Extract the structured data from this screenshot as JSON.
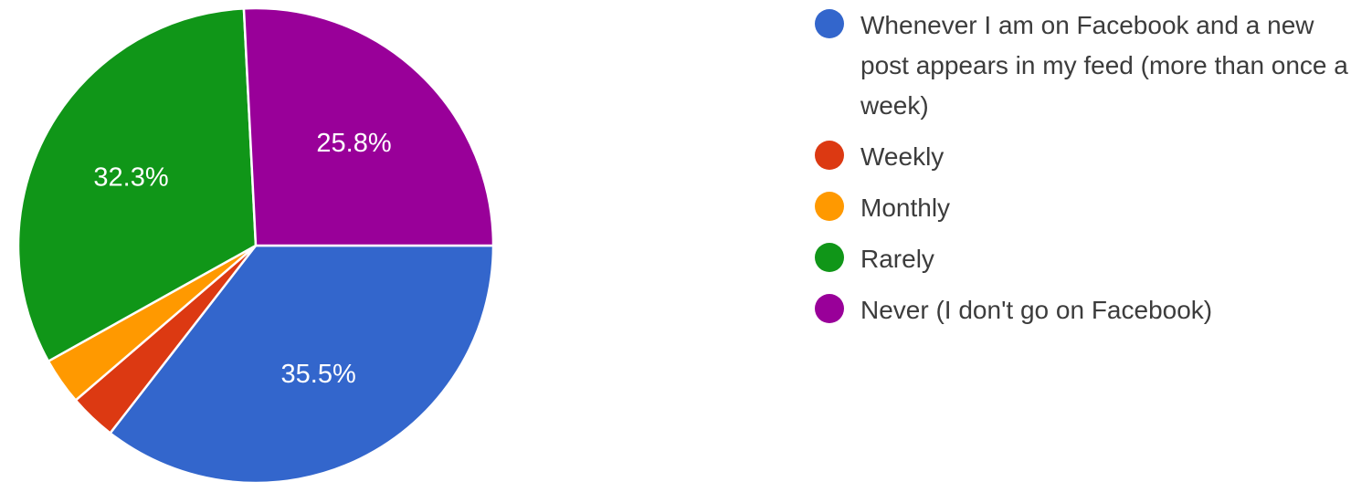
{
  "chart_data": {
    "type": "pie",
    "categories": [
      "Whenever I am on Facebook and a new post appears in my feed (more than once a week)",
      "Weekly",
      "Monthly",
      "Rarely",
      "Never (I don't go on Facebook)"
    ],
    "values": [
      35.5,
      3.2,
      3.2,
      32.3,
      25.8
    ],
    "data_labels": [
      "35.5%",
      "",
      "",
      "32.3%",
      "25.8%"
    ],
    "colors": [
      "#3366cc",
      "#dc3912",
      "#ff9900",
      "#109618",
      "#990099"
    ],
    "legend_position": "right"
  }
}
